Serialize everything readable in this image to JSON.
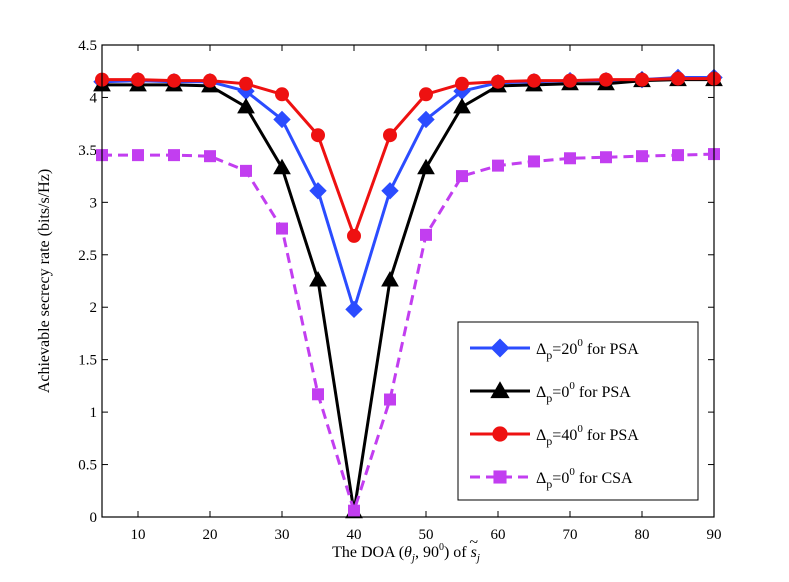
{
  "chart_data": {
    "type": "line",
    "title": "",
    "xlabel": "The DOA (θj, 90⁰) of s̃j",
    "xlabel_parts": {
      "prefix": "The DOA (",
      "theta": "θ",
      "theta_sub": "j",
      "middle": ", 90",
      "deg_sup": "0",
      "suffix": ") of ",
      "s": "s",
      "tilde": "~",
      "s_sub": "j"
    },
    "ylabel": "Achievable secrecy rate (bits/s/Hz)",
    "xlim": [
      5,
      90
    ],
    "ylim": [
      0,
      4.5
    ],
    "xticks": [
      10,
      20,
      30,
      40,
      50,
      60,
      70,
      80,
      90
    ],
    "yticks": [
      0,
      0.5,
      1,
      1.5,
      2,
      2.5,
      3,
      3.5,
      4,
      4.5
    ],
    "ytick_labels": [
      "0",
      "0.5",
      "1",
      "1.5",
      "2",
      "2.5",
      "3",
      "3.5",
      "4",
      "4.5"
    ],
    "grid": false,
    "legend_position": "lower-right",
    "x": [
      5,
      10,
      15,
      20,
      25,
      30,
      35,
      40,
      45,
      50,
      55,
      60,
      65,
      70,
      75,
      80,
      85,
      90
    ],
    "series": [
      {
        "name": "Δp=20⁰ for PSA",
        "legend": {
          "delta": "Δ",
          "sub": "p",
          "eq": "=20",
          "sup": "0",
          "tail": " for PSA"
        },
        "color": "#2b4cff",
        "marker": "diamond",
        "dashed": false,
        "values": [
          4.15,
          4.16,
          4.15,
          4.15,
          4.06,
          3.79,
          3.11,
          1.98,
          3.11,
          3.79,
          4.06,
          4.14,
          4.15,
          4.16,
          4.16,
          4.17,
          4.19,
          4.19
        ]
      },
      {
        "name": "Δp=0⁰ for PSA",
        "legend": {
          "delta": "Δ",
          "sub": "p",
          "eq": "=0",
          "sup": "0",
          "tail": " for PSA"
        },
        "color": "#000000",
        "marker": "triangle",
        "dashed": false,
        "values": [
          4.12,
          4.12,
          4.12,
          4.11,
          3.91,
          3.33,
          2.26,
          0.05,
          2.26,
          3.33,
          3.91,
          4.11,
          4.12,
          4.13,
          4.13,
          4.16,
          4.17,
          4.17
        ]
      },
      {
        "name": "Δp=40⁰ for PSA",
        "legend": {
          "delta": "Δ",
          "sub": "p",
          "eq": "=40",
          "sup": "0",
          "tail": " for PSA"
        },
        "color": "#ee1111",
        "marker": "circle",
        "dashed": false,
        "values": [
          4.17,
          4.17,
          4.16,
          4.16,
          4.13,
          4.03,
          3.64,
          2.68,
          3.64,
          4.03,
          4.13,
          4.15,
          4.16,
          4.16,
          4.17,
          4.17,
          4.18,
          4.18
        ]
      },
      {
        "name": "Δp=0⁰ for CSA",
        "legend": {
          "delta": "Δ",
          "sub": "p",
          "eq": "=0",
          "sup": "0",
          "tail": " for CSA"
        },
        "color": "#c23ef0",
        "marker": "square",
        "dashed": true,
        "values": [
          3.45,
          3.45,
          3.45,
          3.44,
          3.3,
          2.75,
          1.17,
          0.06,
          1.12,
          2.69,
          3.25,
          3.35,
          3.39,
          3.42,
          3.43,
          3.44,
          3.45,
          3.46
        ]
      }
    ]
  }
}
